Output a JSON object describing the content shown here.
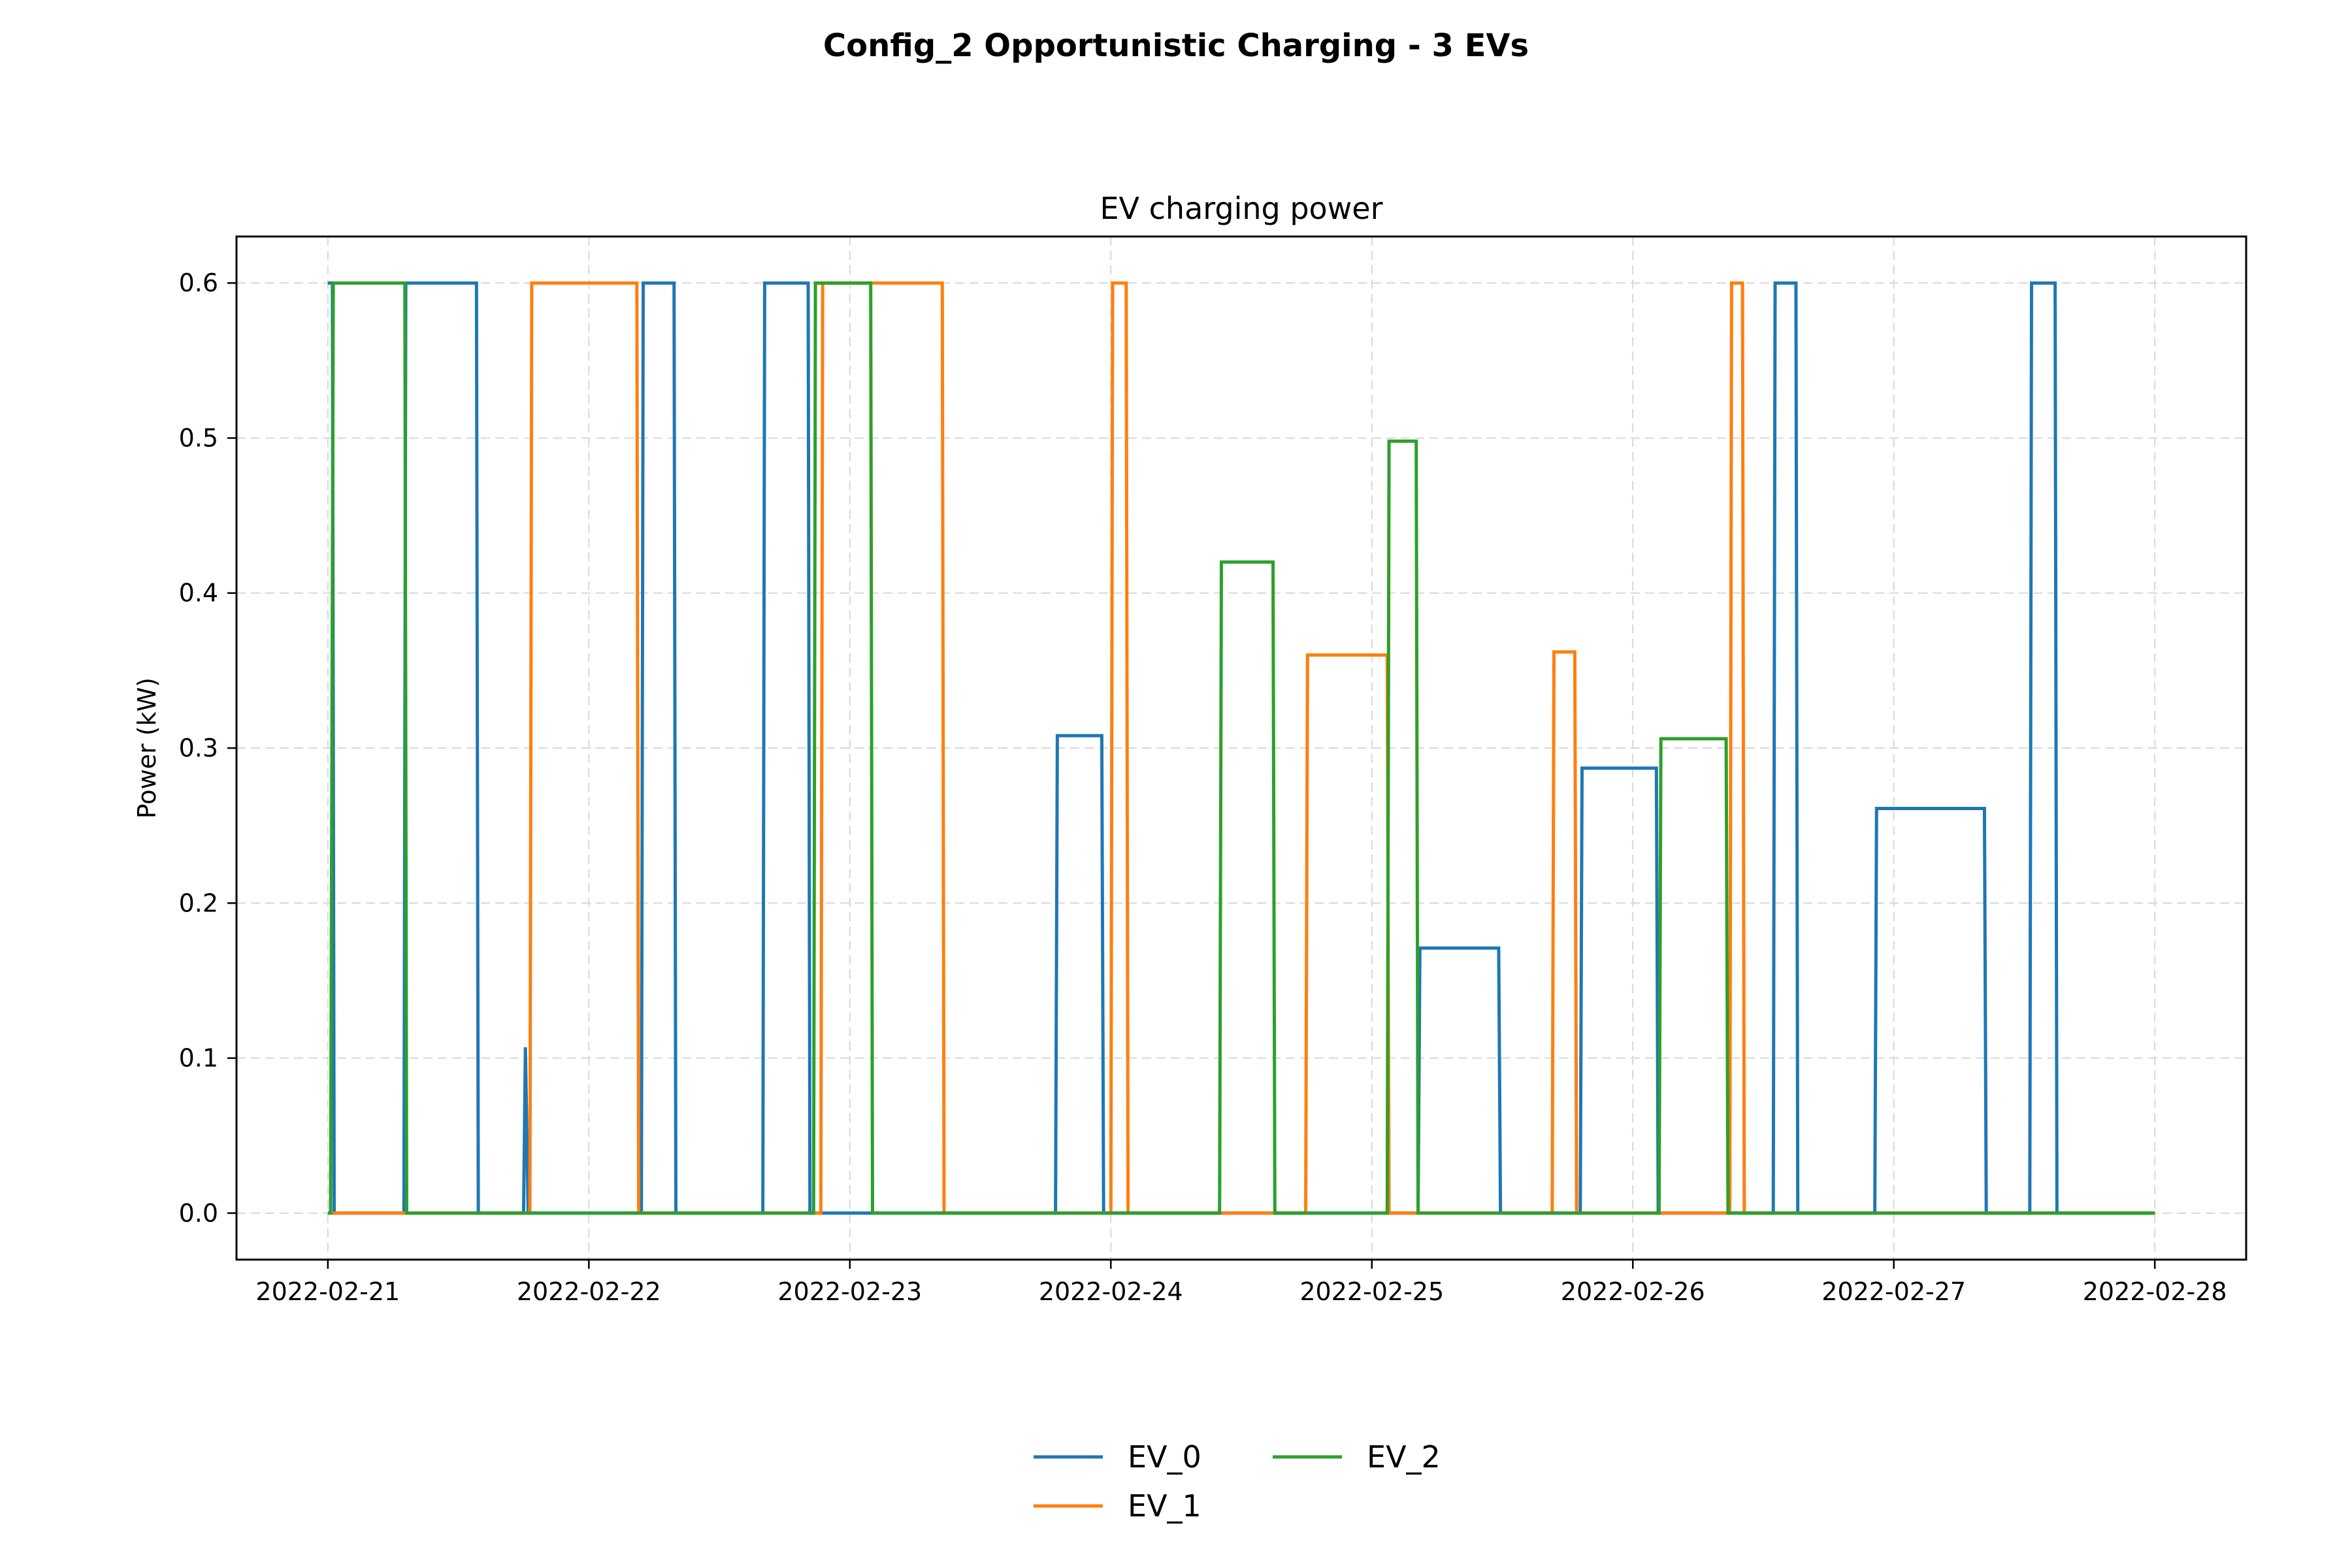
{
  "figure": {
    "suptitle": "Config_2 Opportunistic Charging - 3 EVs"
  },
  "chart_data": {
    "type": "line",
    "title": "EV charging power",
    "xlabel": "",
    "ylabel": "Power (kW)",
    "x_unit": "date (days since 2022-02-21 shown as date ticks)",
    "xlim": [
      "2022-02-20T15:36",
      "2022-02-28T08:24"
    ],
    "ylim": [
      -0.03,
      0.63
    ],
    "x_ticks": [
      "2022-02-21",
      "2022-02-22",
      "2022-02-23",
      "2022-02-24",
      "2022-02-25",
      "2022-02-26",
      "2022-02-27",
      "2022-02-28"
    ],
    "y_ticks": [
      "0.0",
      "0.1",
      "0.2",
      "0.3",
      "0.4",
      "0.5",
      "0.6"
    ],
    "grid": true,
    "legend": {
      "placement": "bottom-center",
      "columns": 2
    },
    "series": [
      {
        "name": "EV_0",
        "color": "#1f77b4",
        "points": [
          [
            "2022-02-21T00:00",
            0.6
          ],
          [
            "2022-02-21T00:25",
            0.6
          ],
          [
            "2022-02-21T00:35",
            0.0
          ],
          [
            "2022-02-21T07:00",
            0.0
          ],
          [
            "2022-02-21T07:10",
            0.6
          ],
          [
            "2022-02-21T13:40",
            0.6
          ],
          [
            "2022-02-21T13:50",
            0.0
          ],
          [
            "2022-02-21T18:00",
            0.0
          ],
          [
            "2022-02-21T18:10",
            0.107
          ],
          [
            "2022-02-21T18:25",
            0.0
          ],
          [
            "2022-02-22T04:50",
            0.0
          ],
          [
            "2022-02-22T05:00",
            0.6
          ],
          [
            "2022-02-22T07:50",
            0.6
          ],
          [
            "2022-02-22T08:00",
            0.0
          ],
          [
            "2022-02-22T16:00",
            0.0
          ],
          [
            "2022-02-22T16:10",
            0.6
          ],
          [
            "2022-02-22T20:10",
            0.6
          ],
          [
            "2022-02-22T20:20",
            0.0
          ],
          [
            "2022-02-23T18:55",
            0.0
          ],
          [
            "2022-02-23T19:05",
            0.308
          ],
          [
            "2022-02-23T23:10",
            0.308
          ],
          [
            "2022-02-23T23:20",
            0.0
          ],
          [
            "2022-02-25T04:15",
            0.0
          ],
          [
            "2022-02-25T04:25",
            0.171
          ],
          [
            "2022-02-25T11:40",
            0.171
          ],
          [
            "2022-02-25T11:50",
            0.0
          ],
          [
            "2022-02-25T19:10",
            0.0
          ],
          [
            "2022-02-25T19:20",
            0.287
          ],
          [
            "2022-02-26T02:10",
            0.287
          ],
          [
            "2022-02-26T02:20",
            0.0
          ],
          [
            "2022-02-26T12:55",
            0.0
          ],
          [
            "2022-02-26T13:05",
            0.6
          ],
          [
            "2022-02-26T15:00",
            0.6
          ],
          [
            "2022-02-26T15:10",
            0.0
          ],
          [
            "2022-02-26T22:15",
            0.0
          ],
          [
            "2022-02-26T22:25",
            0.261
          ],
          [
            "2022-02-27T08:20",
            0.261
          ],
          [
            "2022-02-27T08:30",
            0.0
          ],
          [
            "2022-02-27T12:30",
            0.0
          ],
          [
            "2022-02-27T12:40",
            0.6
          ],
          [
            "2022-02-27T14:50",
            0.6
          ],
          [
            "2022-02-27T15:00",
            0.0
          ],
          [
            "2022-02-28T00:00",
            0.0
          ]
        ]
      },
      {
        "name": "EV_1",
        "color": "#ff7f0e",
        "points": [
          [
            "2022-02-21T00:00",
            0.0
          ],
          [
            "2022-02-21T18:35",
            0.0
          ],
          [
            "2022-02-21T18:45",
            0.6
          ],
          [
            "2022-02-22T04:25",
            0.6
          ],
          [
            "2022-02-22T04:35",
            0.0
          ],
          [
            "2022-02-22T21:20",
            0.0
          ],
          [
            "2022-02-22T21:30",
            0.6
          ],
          [
            "2022-02-23T08:30",
            0.6
          ],
          [
            "2022-02-23T08:40",
            0.0
          ],
          [
            "2022-02-24T00:00",
            0.0
          ],
          [
            "2022-02-24T00:10",
            0.6
          ],
          [
            "2022-02-24T01:25",
            0.6
          ],
          [
            "2022-02-24T01:35",
            0.0
          ],
          [
            "2022-02-24T17:55",
            0.0
          ],
          [
            "2022-02-24T18:05",
            0.36
          ],
          [
            "2022-02-25T01:25",
            0.36
          ],
          [
            "2022-02-25T01:35",
            0.0
          ],
          [
            "2022-02-25T16:35",
            0.0
          ],
          [
            "2022-02-25T16:45",
            0.362
          ],
          [
            "2022-02-25T18:40",
            0.362
          ],
          [
            "2022-02-25T18:50",
            0.0
          ],
          [
            "2022-02-26T08:55",
            0.0
          ],
          [
            "2022-02-26T09:05",
            0.6
          ],
          [
            "2022-02-26T10:05",
            0.6
          ],
          [
            "2022-02-26T10:15",
            0.0
          ],
          [
            "2022-02-28T00:00",
            0.0
          ]
        ]
      },
      {
        "name": "EV_2",
        "color": "#2ca02c",
        "points": [
          [
            "2022-02-21T00:00",
            0.0
          ],
          [
            "2022-02-21T00:15",
            0.0
          ],
          [
            "2022-02-21T00:30",
            0.6
          ],
          [
            "2022-02-21T07:05",
            0.6
          ],
          [
            "2022-02-21T07:15",
            0.0
          ],
          [
            "2022-02-22T20:40",
            0.0
          ],
          [
            "2022-02-22T20:50",
            0.6
          ],
          [
            "2022-02-23T01:55",
            0.6
          ],
          [
            "2022-02-23T02:05",
            0.0
          ],
          [
            "2022-02-24T10:00",
            0.0
          ],
          [
            "2022-02-24T10:10",
            0.42
          ],
          [
            "2022-02-24T14:55",
            0.42
          ],
          [
            "2022-02-24T15:05",
            0.0
          ],
          [
            "2022-02-25T01:25",
            0.0
          ],
          [
            "2022-02-25T01:35",
            0.498
          ],
          [
            "2022-02-25T04:05",
            0.498
          ],
          [
            "2022-02-25T04:15",
            0.0
          ],
          [
            "2022-02-26T02:25",
            0.0
          ],
          [
            "2022-02-26T02:35",
            0.306
          ],
          [
            "2022-02-26T08:35",
            0.306
          ],
          [
            "2022-02-26T08:45",
            0.0
          ],
          [
            "2022-02-28T00:00",
            0.0
          ]
        ]
      }
    ]
  }
}
